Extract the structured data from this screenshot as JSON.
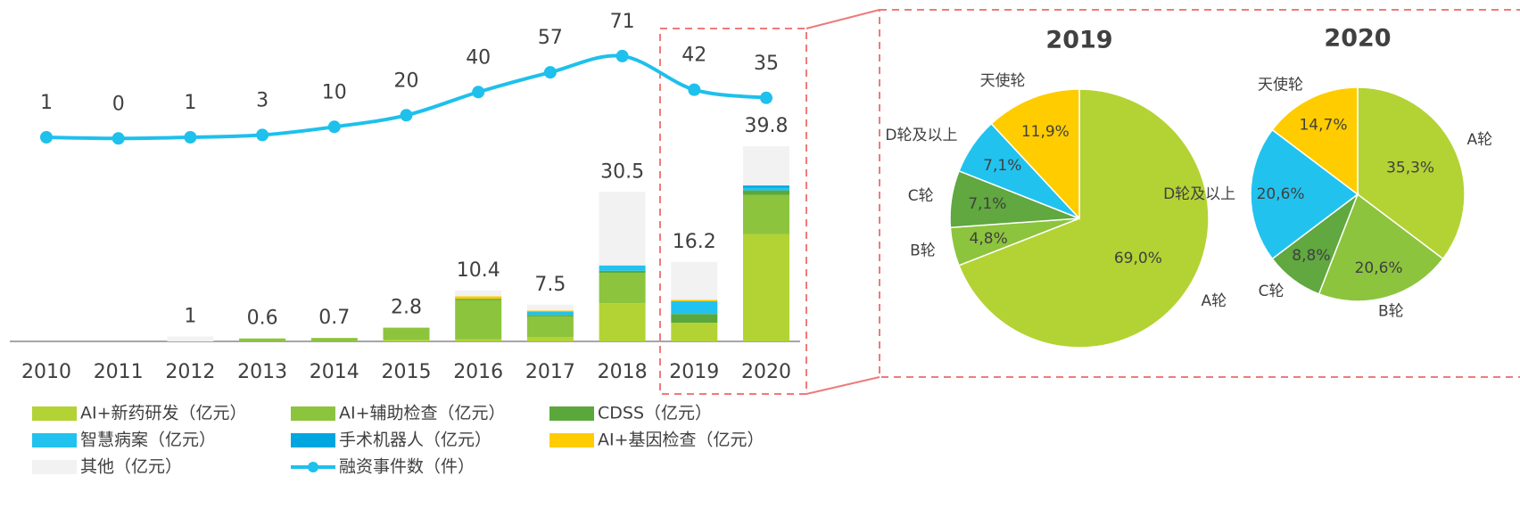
{
  "chart_data": [
    {
      "type": "bar",
      "stacked": true,
      "categories": [
        "2010",
        "2011",
        "2012",
        "2013",
        "2014",
        "2015",
        "2016",
        "2017",
        "2018",
        "2019",
        "2020"
      ],
      "series": [
        {
          "name": "AI+新药研发（亿元）",
          "color": "#b3d334",
          "values": [
            0,
            0,
            0,
            0,
            0,
            0.3,
            0.4,
            0.9,
            7.8,
            3.8,
            21.9
          ]
        },
        {
          "name": "AI+辅助检查（亿元）",
          "color": "#8cc43e",
          "values": [
            0,
            0,
            0,
            0.6,
            0.7,
            2.5,
            8.0,
            4.2,
            6.2,
            0,
            8.0
          ]
        },
        {
          "name": "CDSS（亿元）",
          "color": "#5aa83c",
          "values": [
            0,
            0,
            0,
            0,
            0,
            0,
            0.3,
            0.3,
            0.4,
            1.8,
            0.9
          ]
        },
        {
          "name": "智慧病案（亿元）",
          "color": "#22c2ee",
          "values": [
            0,
            0,
            0,
            0,
            0,
            0,
            0,
            0.7,
            1.1,
            2.6,
            0.5
          ]
        },
        {
          "name": "手术机器人（亿元）",
          "color": "#00a6e0",
          "values": [
            0,
            0,
            0,
            0,
            0,
            0,
            0,
            0,
            0,
            0,
            0.5
          ]
        },
        {
          "name": "AI+基因检查（亿元）",
          "color": "#ffcc00",
          "values": [
            0,
            0,
            0,
            0,
            0,
            0,
            0.5,
            0.2,
            0,
            0.3,
            0
          ]
        },
        {
          "name": "其他（亿元）",
          "color": "#f2f2f2",
          "values": [
            0,
            0,
            1,
            0,
            0,
            0,
            1.2,
            1.2,
            15.0,
            7.7,
            8.0
          ]
        },
        {
          "name": "融资事件数（件）",
          "color": "#1ec0ec",
          "type": "line",
          "axis": "y2",
          "values": [
            1,
            0,
            1,
            3,
            10,
            20,
            40,
            57,
            71,
            42,
            35
          ]
        }
      ],
      "totals": [
        null,
        null,
        1,
        0.6,
        0.7,
        2.8,
        10.4,
        7.5,
        30.5,
        16.2,
        39.8
      ],
      "ylim": [
        0,
        66
      ],
      "y2lim": [
        -175,
        104
      ]
    },
    {
      "type": "pie",
      "title": "2019",
      "categories": [
        "A轮",
        "B轮",
        "C轮",
        "D轮及以上",
        "天使轮"
      ],
      "values": [
        69.0,
        4.8,
        7.1,
        7.1,
        11.9
      ],
      "value_labels": [
        "69,0%",
        "4,8%",
        "7,1%",
        "7,1%",
        "11,9%"
      ],
      "colors": [
        "#b3d334",
        "#8cc43e",
        "#60a83f",
        "#22c2ee",
        "#ffcc00"
      ]
    },
    {
      "type": "pie",
      "title": "2020",
      "categories": [
        "A轮",
        "B轮",
        "C轮",
        "D轮及以上",
        "天使轮"
      ],
      "values": [
        35.3,
        20.6,
        8.8,
        20.6,
        14.7
      ],
      "value_labels": [
        "35,3%",
        "20,6%",
        "8,8%",
        "20,6%",
        "14,7%"
      ],
      "colors": [
        "#b3d334",
        "#8cc43e",
        "#60a83f",
        "#22c2ee",
        "#ffcc00"
      ]
    }
  ]
}
